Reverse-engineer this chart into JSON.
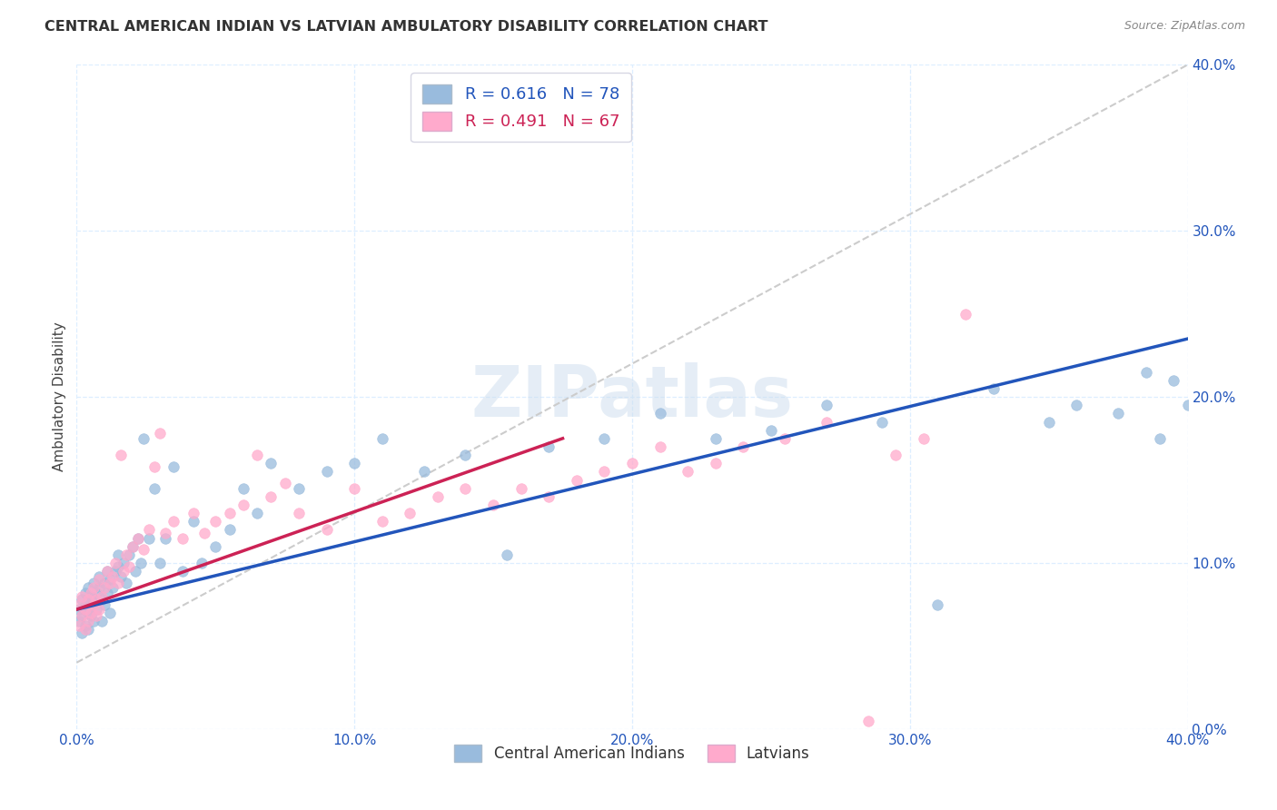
{
  "title": "CENTRAL AMERICAN INDIAN VS LATVIAN AMBULATORY DISABILITY CORRELATION CHART",
  "source": "Source: ZipAtlas.com",
  "ylabel": "Ambulatory Disability",
  "watermark": "ZIPatlas",
  "legend_labels": [
    "Central American Indians",
    "Latvians"
  ],
  "blue_R": 0.616,
  "blue_N": 78,
  "pink_R": 0.491,
  "pink_N": 67,
  "blue_color": "#99BBDD",
  "pink_color": "#FFAACC",
  "blue_line_color": "#2255BB",
  "pink_line_color": "#CC2255",
  "dashed_line_color": "#CCCCCC",
  "xlim": [
    0.0,
    0.4
  ],
  "ylim": [
    0.0,
    0.4
  ],
  "xticks": [
    0.0,
    0.1,
    0.2,
    0.3,
    0.4
  ],
  "yticks": [
    0.0,
    0.1,
    0.2,
    0.3,
    0.4
  ],
  "xtick_labels": [
    "0.0%",
    "10.0%",
    "20.0%",
    "30.0%",
    "40.0%"
  ],
  "ytick_labels": [
    "0.0%",
    "10.0%",
    "20.0%",
    "30.0%",
    "40.0%"
  ],
  "background_color": "#FFFFFF",
  "grid_color": "#DDEEFF",
  "blue_scatter_x": [
    0.001,
    0.001,
    0.002,
    0.002,
    0.002,
    0.003,
    0.003,
    0.003,
    0.004,
    0.004,
    0.004,
    0.005,
    0.005,
    0.005,
    0.006,
    0.006,
    0.006,
    0.007,
    0.007,
    0.008,
    0.008,
    0.009,
    0.009,
    0.01,
    0.01,
    0.011,
    0.011,
    0.012,
    0.012,
    0.013,
    0.014,
    0.015,
    0.015,
    0.016,
    0.017,
    0.018,
    0.019,
    0.02,
    0.021,
    0.022,
    0.023,
    0.024,
    0.026,
    0.028,
    0.03,
    0.032,
    0.035,
    0.038,
    0.042,
    0.045,
    0.05,
    0.055,
    0.06,
    0.065,
    0.07,
    0.08,
    0.09,
    0.1,
    0.11,
    0.125,
    0.14,
    0.155,
    0.17,
    0.19,
    0.21,
    0.23,
    0.25,
    0.27,
    0.29,
    0.31,
    0.33,
    0.35,
    0.36,
    0.375,
    0.385,
    0.39,
    0.395,
    0.4
  ],
  "blue_scatter_y": [
    0.072,
    0.065,
    0.068,
    0.078,
    0.058,
    0.075,
    0.082,
    0.062,
    0.07,
    0.085,
    0.06,
    0.075,
    0.08,
    0.068,
    0.078,
    0.088,
    0.065,
    0.082,
    0.072,
    0.085,
    0.092,
    0.078,
    0.065,
    0.088,
    0.075,
    0.082,
    0.095,
    0.07,
    0.09,
    0.085,
    0.095,
    0.098,
    0.105,
    0.092,
    0.1,
    0.088,
    0.105,
    0.11,
    0.095,
    0.115,
    0.1,
    0.175,
    0.115,
    0.145,
    0.1,
    0.115,
    0.158,
    0.095,
    0.125,
    0.1,
    0.11,
    0.12,
    0.145,
    0.13,
    0.16,
    0.145,
    0.155,
    0.16,
    0.175,
    0.155,
    0.165,
    0.105,
    0.17,
    0.175,
    0.19,
    0.175,
    0.18,
    0.195,
    0.185,
    0.075,
    0.205,
    0.185,
    0.195,
    0.19,
    0.215,
    0.175,
    0.21,
    0.195
  ],
  "pink_scatter_x": [
    0.001,
    0.001,
    0.002,
    0.002,
    0.003,
    0.003,
    0.004,
    0.004,
    0.005,
    0.005,
    0.006,
    0.006,
    0.007,
    0.007,
    0.008,
    0.008,
    0.009,
    0.01,
    0.011,
    0.012,
    0.013,
    0.014,
    0.015,
    0.016,
    0.017,
    0.018,
    0.019,
    0.02,
    0.022,
    0.024,
    0.026,
    0.028,
    0.03,
    0.032,
    0.035,
    0.038,
    0.042,
    0.046,
    0.05,
    0.055,
    0.06,
    0.065,
    0.07,
    0.075,
    0.08,
    0.09,
    0.1,
    0.11,
    0.12,
    0.13,
    0.14,
    0.15,
    0.16,
    0.17,
    0.18,
    0.19,
    0.2,
    0.21,
    0.22,
    0.23,
    0.24,
    0.255,
    0.27,
    0.285,
    0.295,
    0.305,
    0.32
  ],
  "pink_scatter_y": [
    0.075,
    0.062,
    0.068,
    0.08,
    0.072,
    0.06,
    0.078,
    0.065,
    0.082,
    0.07,
    0.075,
    0.085,
    0.068,
    0.078,
    0.072,
    0.09,
    0.08,
    0.085,
    0.095,
    0.088,
    0.092,
    0.1,
    0.088,
    0.165,
    0.095,
    0.105,
    0.098,
    0.11,
    0.115,
    0.108,
    0.12,
    0.158,
    0.178,
    0.118,
    0.125,
    0.115,
    0.13,
    0.118,
    0.125,
    0.13,
    0.135,
    0.165,
    0.14,
    0.148,
    0.13,
    0.12,
    0.145,
    0.125,
    0.13,
    0.14,
    0.145,
    0.135,
    0.145,
    0.14,
    0.15,
    0.155,
    0.16,
    0.17,
    0.155,
    0.16,
    0.17,
    0.175,
    0.185,
    0.005,
    0.165,
    0.175,
    0.25
  ],
  "blue_trend_x": [
    0.0,
    0.4
  ],
  "blue_trend_y": [
    0.072,
    0.235
  ],
  "pink_trend_x": [
    0.0,
    0.175
  ],
  "pink_trend_y": [
    0.072,
    0.175
  ],
  "dashed_trend_x": [
    0.0,
    0.4
  ],
  "dashed_trend_y": [
    0.04,
    0.4
  ]
}
